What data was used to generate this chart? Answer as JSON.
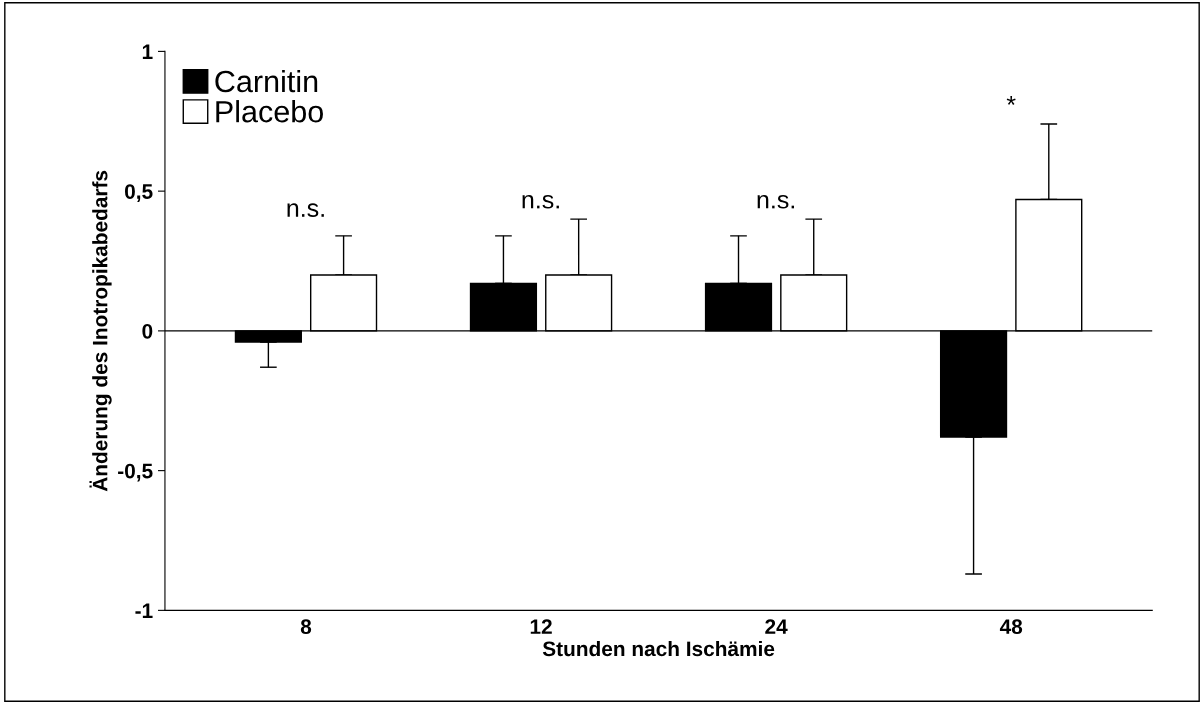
{
  "chart_data": {
    "type": "bar",
    "xlabel": "Stunden nach Ischämie",
    "ylabel": "Änderung des Inotropikabedarfs",
    "categories": [
      "8",
      "12",
      "24",
      "48"
    ],
    "series": [
      {
        "name": "Carnitin",
        "color": "#000000",
        "values": [
          -0.04,
          0.17,
          0.17,
          -0.38
        ],
        "errors": [
          [
            -0.13,
            -0.04
          ],
          [
            0.17,
            0.34
          ],
          [
            0.17,
            0.34
          ],
          [
            -0.87,
            -0.38
          ]
        ]
      },
      {
        "name": "Placebo",
        "color": "#ffffff",
        "values": [
          0.2,
          0.2,
          0.2,
          0.47
        ],
        "errors": [
          [
            0.2,
            0.34
          ],
          [
            0.2,
            0.4
          ],
          [
            0.2,
            0.4
          ],
          [
            0.47,
            0.74
          ]
        ]
      }
    ],
    "ylim": [
      -1,
      1
    ],
    "yticks": [
      {
        "value": -1,
        "label": "-1"
      },
      {
        "value": -0.5,
        "label": "-0,5"
      },
      {
        "value": 0,
        "label": "0"
      },
      {
        "value": 0.5,
        "label": "0,5"
      },
      {
        "value": 1,
        "label": "1"
      }
    ],
    "ref_lines": [
      {
        "axis": "y",
        "value": 0,
        "color": "#000000"
      }
    ],
    "annotations": [
      "n.s.",
      "n.s.",
      "n.s.",
      "*"
    ],
    "legend": "top left",
    "grid": false
  }
}
